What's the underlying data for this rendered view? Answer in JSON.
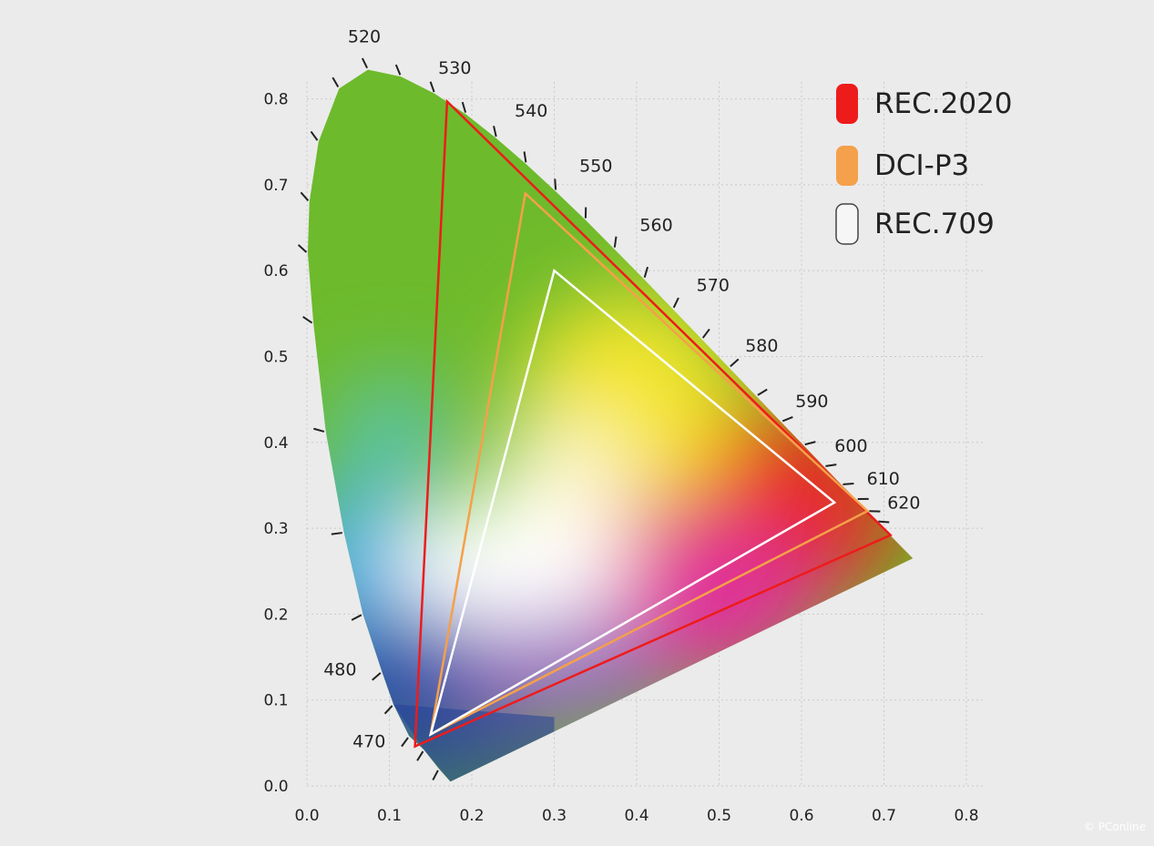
{
  "chart_data": {
    "type": "scatter",
    "title": "",
    "xlabel": "",
    "ylabel": "",
    "xlim": [
      0.0,
      0.8
    ],
    "ylim": [
      0.0,
      0.8
    ],
    "x_ticks": [
      "0.0",
      "0.1",
      "0.2",
      "0.3",
      "0.4",
      "0.5",
      "0.6",
      "0.7",
      "0.8"
    ],
    "y_ticks": [
      "0.0",
      "0.1",
      "0.2",
      "0.3",
      "0.4",
      "0.5",
      "0.6",
      "0.7",
      "0.8"
    ],
    "grid": true,
    "legend_position": "top-right",
    "spectral_locus_labels": [
      {
        "nm": "470",
        "x": 0.124,
        "y": 0.058
      },
      {
        "nm": "480",
        "x": 0.091,
        "y": 0.133
      },
      {
        "nm": "520",
        "x": 0.074,
        "y": 0.834
      },
      {
        "nm": "530",
        "x": 0.155,
        "y": 0.806
      },
      {
        "nm": "540",
        "x": 0.23,
        "y": 0.754
      },
      {
        "nm": "550",
        "x": 0.302,
        "y": 0.692
      },
      {
        "nm": "560",
        "x": 0.373,
        "y": 0.625
      },
      {
        "nm": "570",
        "x": 0.444,
        "y": 0.555
      },
      {
        "nm": "580",
        "x": 0.512,
        "y": 0.487
      },
      {
        "nm": "590",
        "x": 0.575,
        "y": 0.424
      },
      {
        "nm": "600",
        "x": 0.627,
        "y": 0.372
      },
      {
        "nm": "610",
        "x": 0.666,
        "y": 0.334
      },
      {
        "nm": "620",
        "x": 0.691,
        "y": 0.308
      }
    ],
    "series": [
      {
        "name": "REC.2020",
        "color": "#ee1b1b",
        "points": [
          [
            0.708,
            0.292
          ],
          [
            0.17,
            0.797
          ],
          [
            0.131,
            0.046
          ]
        ]
      },
      {
        "name": "DCI-P3",
        "color": "#f5a04a",
        "points": [
          [
            0.68,
            0.32
          ],
          [
            0.265,
            0.69
          ],
          [
            0.15,
            0.06
          ]
        ]
      },
      {
        "name": "REC.709",
        "color": "#ffffff",
        "points": [
          [
            0.64,
            0.33
          ],
          [
            0.3,
            0.6
          ],
          [
            0.15,
            0.06
          ]
        ]
      }
    ]
  },
  "watermark": "© PConline"
}
